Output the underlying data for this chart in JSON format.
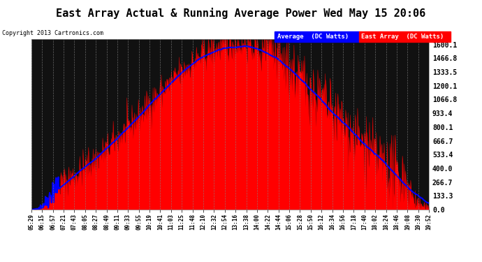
{
  "title": "East Array Actual & Running Average Power Wed May 15 20:06",
  "copyright": "Copyright 2013 Cartronics.com",
  "legend_labels": [
    "Average  (DC Watts)",
    "East Array  (DC Watts)"
  ],
  "legend_colors": [
    "#0000ff",
    "#ff0000"
  ],
  "yticks": [
    0.0,
    133.3,
    266.7,
    400.0,
    533.4,
    666.7,
    800.1,
    933.4,
    1066.8,
    1200.1,
    1333.5,
    1466.8,
    1600.1
  ],
  "ymax": 1600.1,
  "ymin": 0.0,
  "bg_color": "#ffffff",
  "plot_bg_color": "#000000",
  "grid_color": "#888888",
  "fill_color": "#ff0000",
  "avg_line_color": "#0000ff",
  "xtick_labels": [
    "05:29",
    "06:15",
    "06:57",
    "07:21",
    "07:43",
    "08:05",
    "08:27",
    "08:49",
    "09:11",
    "09:33",
    "09:55",
    "10:19",
    "10:41",
    "11:03",
    "11:25",
    "11:48",
    "12:10",
    "12:32",
    "12:54",
    "13:16",
    "13:38",
    "14:00",
    "14:22",
    "14:44",
    "15:06",
    "15:28",
    "15:50",
    "16:12",
    "16:34",
    "16:56",
    "17:18",
    "17:40",
    "18:02",
    "18:24",
    "18:46",
    "19:08",
    "19:30",
    "19:52"
  ]
}
